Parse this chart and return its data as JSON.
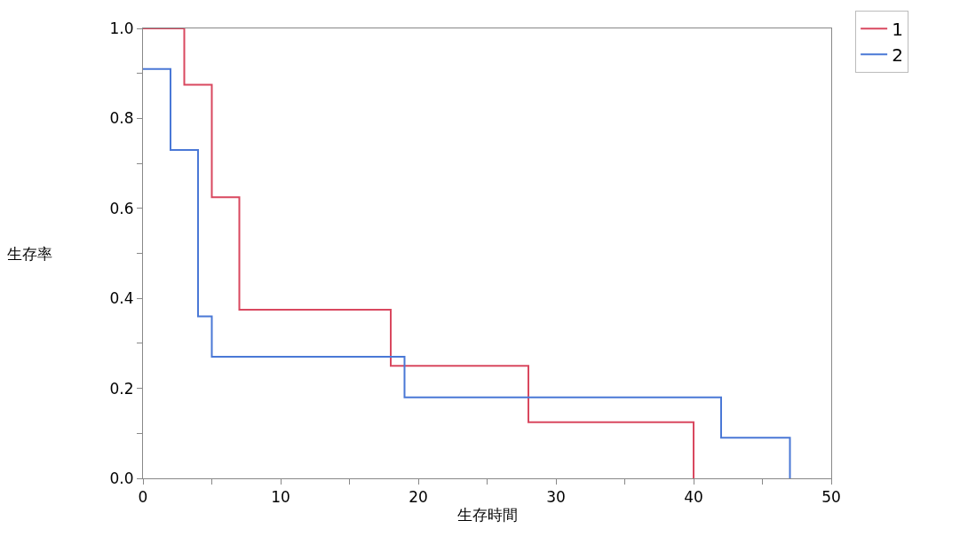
{
  "chart_data": {
    "type": "step",
    "xlabel": "生存時間",
    "ylabel": "生存率",
    "series": [
      {
        "name": "1",
        "color": "#d9485f",
        "x": [
          0,
          3,
          5,
          7,
          18,
          28,
          40
        ],
        "values": [
          1,
          0.875,
          0.625,
          0.375,
          0.25,
          0.125,
          0
        ]
      },
      {
        "name": "2",
        "color": "#4a78d6",
        "x": [
          0,
          2,
          4,
          5,
          19,
          42,
          47
        ],
        "values": [
          0.91,
          0.73,
          0.36,
          0.27,
          0.18,
          0.09,
          0
        ]
      }
    ],
    "xlim": [
      0,
      50
    ],
    "ylim": [
      0,
      1
    ],
    "xticks": [
      0,
      {
        "value": 5,
        "label": null
      },
      10,
      {
        "value": 15,
        "label": null
      },
      20,
      {
        "value": 25,
        "label": null
      },
      30,
      {
        "value": 35,
        "label": null
      },
      40,
      {
        "value": 45,
        "label": null
      },
      50
    ],
    "yticks": [
      {
        "value": 0,
        "label": "0.0"
      },
      {
        "value": 0.1,
        "label": null
      },
      0.2,
      {
        "value": 0.3,
        "label": null
      },
      0.4,
      {
        "value": 0.5,
        "label": null
      },
      0.6,
      {
        "value": 0.7,
        "label": null
      },
      0.8,
      {
        "value": 0.9,
        "label": null
      },
      {
        "value": 1,
        "label": "1.0"
      }
    ],
    "grid": false,
    "legend": "top right",
    "line_style": "solid",
    "marker": "none"
  }
}
